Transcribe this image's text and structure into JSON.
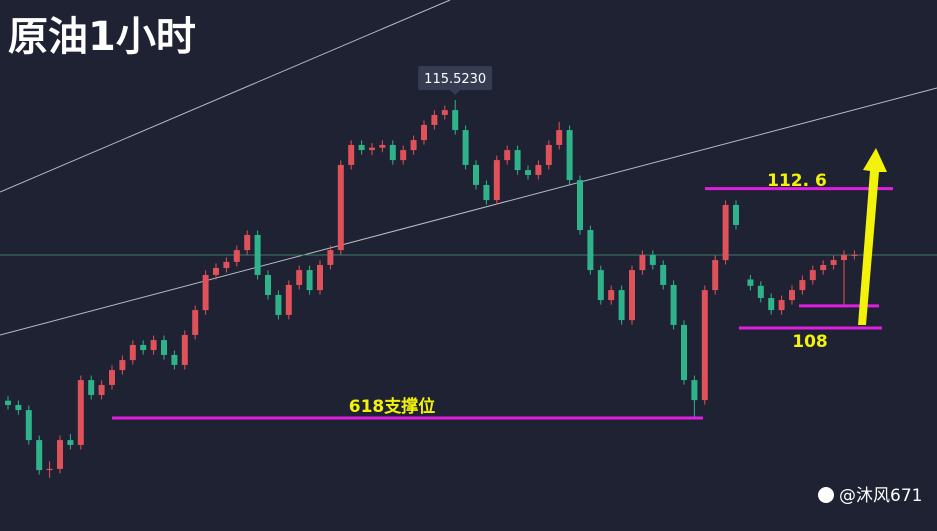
{
  "chart_data": {
    "type": "candlestick",
    "title": "原油1小时",
    "watermark": "@沐风671",
    "high_label": {
      "value": 115.523,
      "label": "115.5230"
    },
    "ylim": [
      101.3,
      118.823
    ],
    "up_color": "#e0525a",
    "down_color": "#2fb38a",
    "price_line": 110.41,
    "levels": [
      {
        "value": 112.6,
        "label": "112. 6",
        "color": "#e020e0"
      },
      {
        "value": 108,
        "label": "108",
        "color": "#e020e0"
      },
      {
        "value": 108.73,
        "color": "#e020e0"
      },
      {
        "value": 105.03,
        "label": "618支撑位",
        "color": "#e020e0"
      }
    ],
    "ohlc": [
      [
        105.6,
        105.75,
        105.31,
        105.46
      ],
      [
        105.46,
        105.61,
        105.14,
        105.29
      ],
      [
        105.29,
        105.44,
        104.15,
        104.3
      ],
      [
        104.3,
        104.45,
        103.16,
        103.31
      ],
      [
        103.31,
        103.6,
        103.05,
        103.35
      ],
      [
        103.35,
        104.45,
        103.2,
        104.3
      ],
      [
        104.3,
        104.5,
        103.99,
        104.14
      ],
      [
        104.14,
        106.43,
        103.99,
        106.28
      ],
      [
        106.28,
        106.43,
        105.64,
        105.79
      ],
      [
        105.79,
        106.27,
        105.64,
        106.12
      ],
      [
        106.12,
        106.76,
        105.97,
        106.61
      ],
      [
        106.61,
        107.09,
        106.46,
        106.94
      ],
      [
        106.94,
        107.59,
        106.79,
        107.44
      ],
      [
        107.44,
        107.59,
        107.12,
        107.27
      ],
      [
        107.27,
        107.75,
        107.12,
        107.6
      ],
      [
        107.6,
        107.75,
        106.96,
        107.11
      ],
      [
        107.11,
        107.26,
        106.63,
        106.78
      ],
      [
        106.78,
        107.92,
        106.63,
        107.77
      ],
      [
        107.77,
        108.74,
        107.62,
        108.59
      ],
      [
        108.59,
        109.9,
        108.44,
        109.75
      ],
      [
        109.75,
        110.13,
        109.6,
        109.98
      ],
      [
        109.98,
        110.33,
        109.83,
        110.18
      ],
      [
        110.18,
        110.72,
        110.03,
        110.57
      ],
      [
        110.57,
        111.22,
        110.42,
        111.07
      ],
      [
        111.07,
        111.22,
        109.6,
        109.75
      ],
      [
        109.75,
        109.9,
        108.94,
        109.09
      ],
      [
        109.09,
        109.24,
        108.28,
        108.43
      ],
      [
        108.43,
        109.57,
        108.28,
        109.42
      ],
      [
        109.42,
        110.06,
        109.27,
        109.91
      ],
      [
        109.91,
        110.06,
        109.1,
        109.25
      ],
      [
        109.25,
        110.23,
        109.1,
        110.08
      ],
      [
        110.08,
        110.72,
        109.93,
        110.57
      ],
      [
        110.57,
        113.53,
        110.42,
        113.38
      ],
      [
        113.38,
        114.19,
        113.23,
        114.04
      ],
      [
        114.04,
        114.19,
        113.72,
        113.87
      ],
      [
        113.87,
        114.1,
        113.7,
        113.95
      ],
      [
        113.95,
        114.19,
        113.8,
        114.04
      ],
      [
        114.04,
        114.19,
        113.39,
        113.54
      ],
      [
        113.54,
        114.02,
        113.39,
        113.87
      ],
      [
        113.87,
        114.35,
        113.72,
        114.2
      ],
      [
        114.2,
        114.85,
        114.05,
        114.7
      ],
      [
        114.7,
        115.18,
        114.55,
        115.03
      ],
      [
        115.03,
        115.34,
        114.88,
        115.19
      ],
      [
        115.19,
        115.523,
        114.38,
        114.53
      ],
      [
        114.53,
        114.68,
        113.23,
        113.38
      ],
      [
        113.38,
        113.53,
        112.57,
        112.72
      ],
      [
        112.72,
        112.87,
        112.07,
        112.22
      ],
      [
        112.22,
        113.69,
        112.07,
        113.54
      ],
      [
        113.54,
        114.02,
        113.39,
        113.87
      ],
      [
        113.87,
        114.02,
        113.06,
        113.21
      ],
      [
        113.21,
        113.36,
        112.9,
        113.05
      ],
      [
        113.05,
        113.53,
        112.9,
        113.38
      ],
      [
        113.38,
        114.19,
        113.23,
        114.04
      ],
      [
        114.04,
        114.8,
        113.89,
        114.53
      ],
      [
        114.53,
        114.68,
        112.73,
        112.88
      ],
      [
        112.88,
        113.03,
        111.08,
        111.23
      ],
      [
        111.23,
        111.38,
        109.76,
        109.91
      ],
      [
        109.91,
        110.06,
        108.77,
        108.92
      ],
      [
        108.92,
        109.4,
        108.77,
        109.25
      ],
      [
        109.25,
        109.4,
        108.11,
        108.26
      ],
      [
        108.26,
        110.06,
        108.11,
        109.91
      ],
      [
        109.91,
        110.56,
        109.76,
        110.41
      ],
      [
        110.41,
        110.56,
        109.93,
        110.08
      ],
      [
        110.08,
        110.23,
        109.27,
        109.42
      ],
      [
        109.42,
        109.57,
        107.95,
        108.1
      ],
      [
        108.1,
        108.25,
        106.13,
        106.28
      ],
      [
        106.28,
        106.43,
        105.03,
        105.62
      ],
      [
        105.62,
        109.4,
        105.47,
        109.25
      ],
      [
        109.25,
        110.39,
        109.1,
        110.24
      ],
      [
        110.24,
        112.21,
        110.09,
        112.06
      ],
      [
        112.06,
        112.21,
        111.25,
        111.4
      ],
      [
        109.6,
        109.75,
        109.24,
        109.39
      ],
      [
        109.39,
        109.54,
        108.84,
        108.99
      ],
      [
        108.99,
        109.14,
        108.44,
        108.59
      ],
      [
        108.59,
        109.07,
        108.44,
        108.92
      ],
      [
        108.92,
        109.4,
        108.77,
        109.25
      ],
      [
        109.25,
        109.73,
        109.1,
        109.58
      ],
      [
        109.58,
        110.06,
        109.43,
        109.91
      ],
      [
        109.91,
        110.23,
        109.76,
        110.08
      ],
      [
        110.08,
        110.39,
        109.93,
        110.24
      ],
      [
        110.24,
        110.56,
        108.7,
        110.41
      ],
      [
        110.41,
        110.56,
        110.26,
        110.41
      ]
    ]
  }
}
